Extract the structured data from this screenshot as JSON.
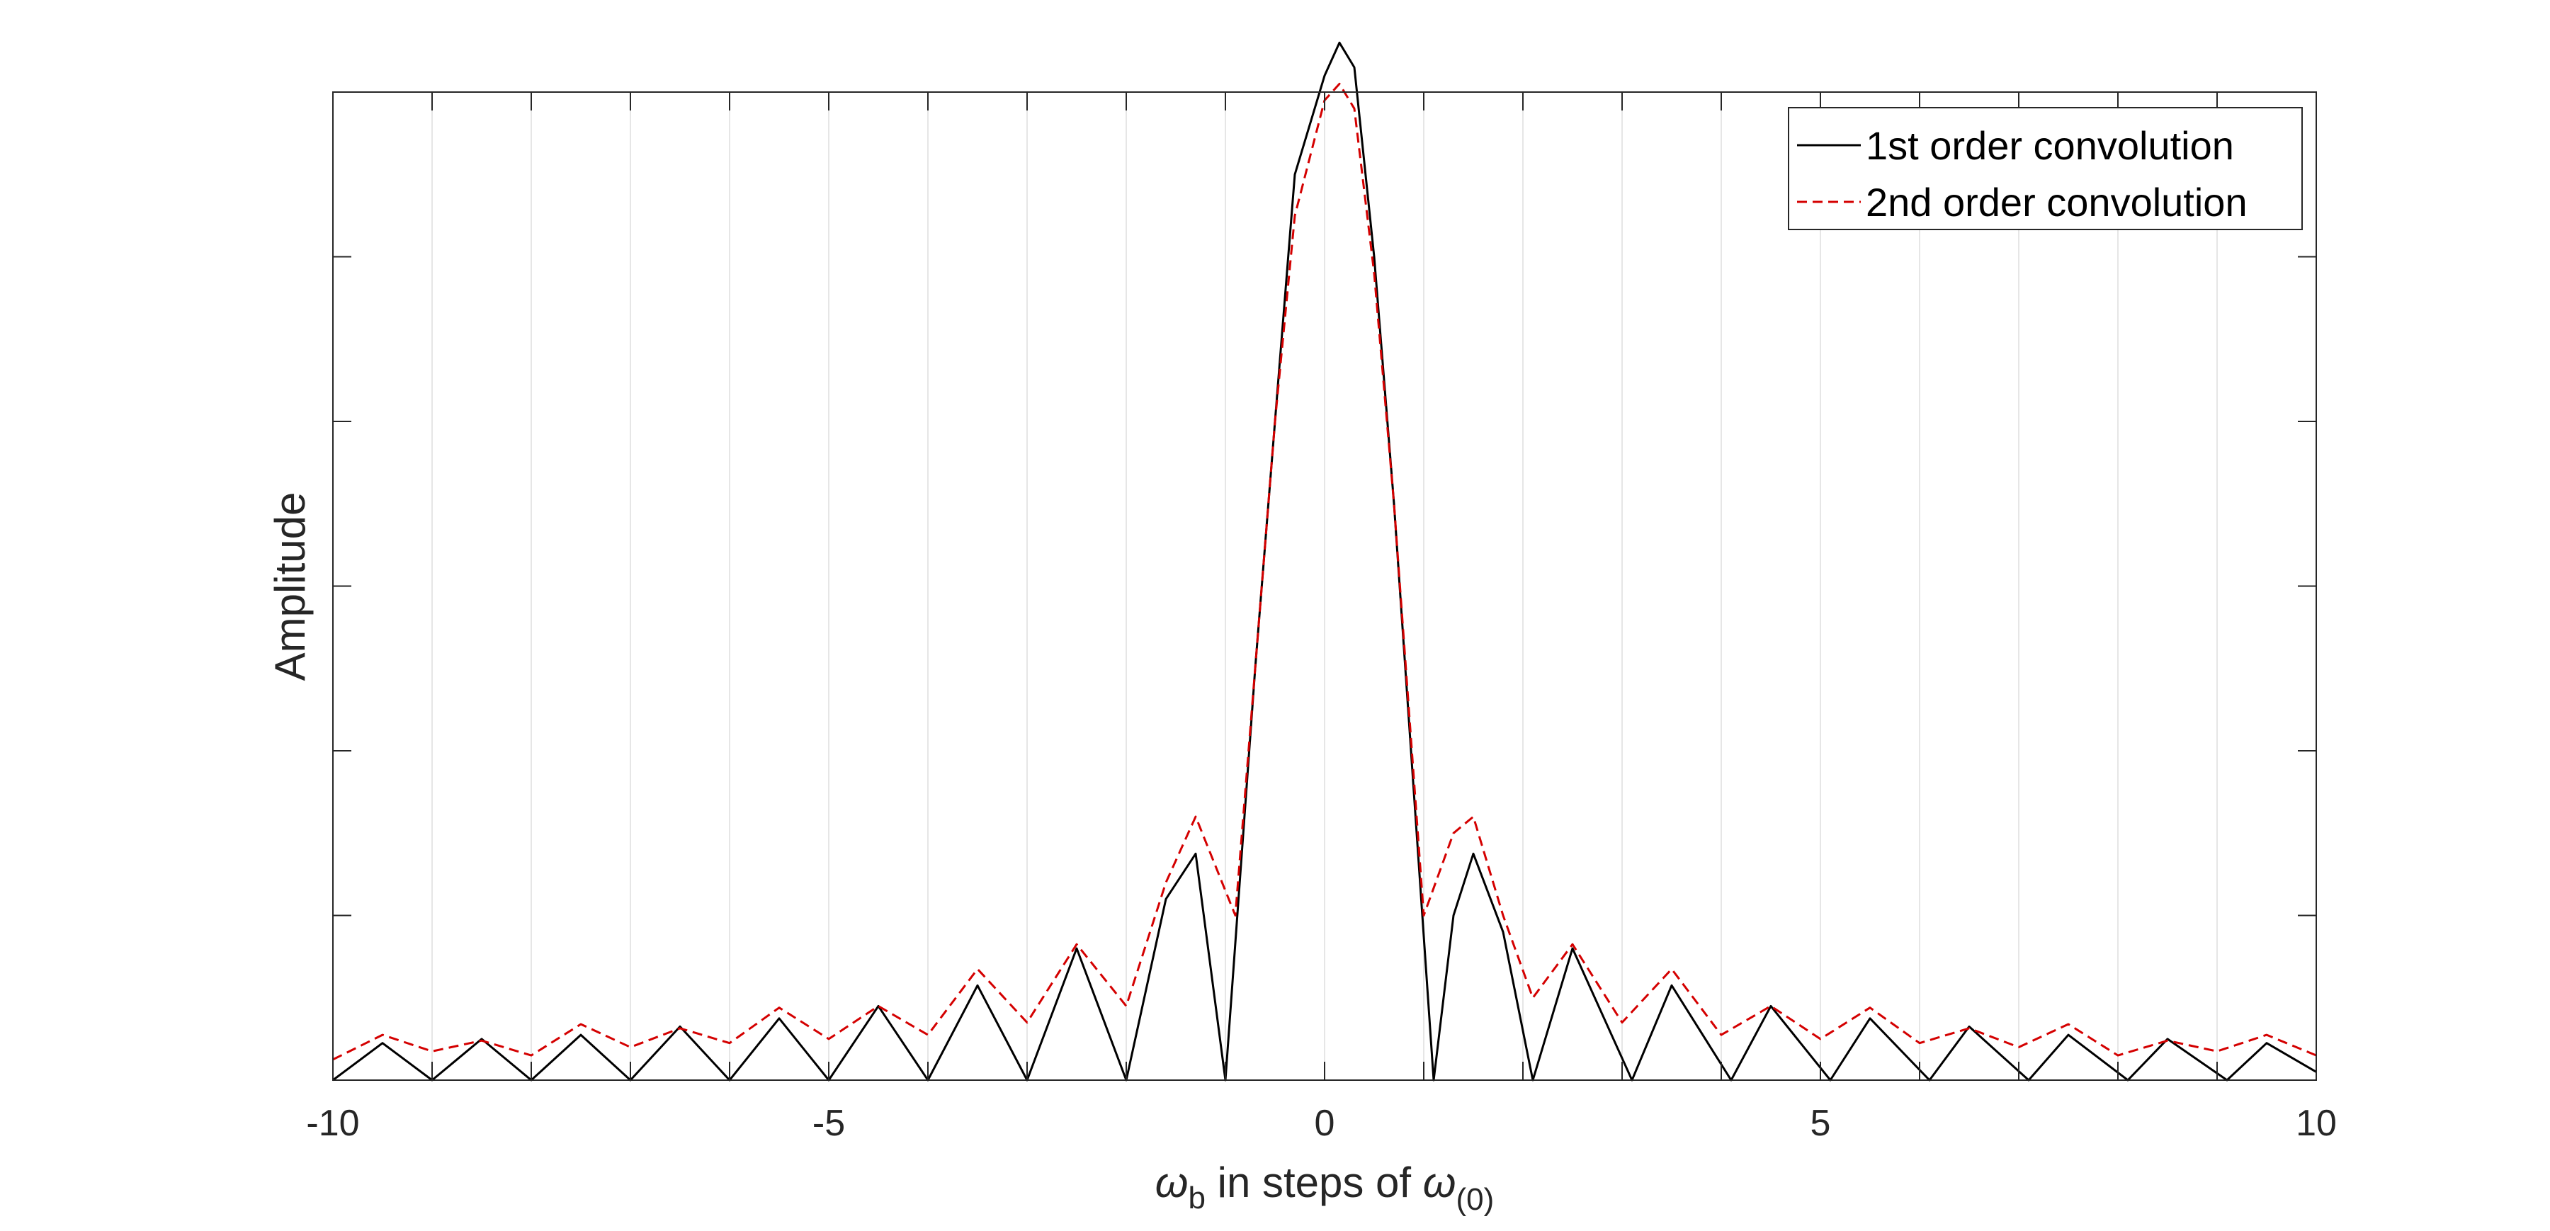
{
  "chart_data": {
    "type": "line",
    "title": "",
    "xlabel": {
      "main": "ω",
      "main_sub": "b",
      "middle": " in steps of ",
      "end": "ω",
      "end_sub": "(0)"
    },
    "ylabel": "Amplitude",
    "xlim": [
      -10,
      10
    ],
    "ylim": [
      0,
      1.2
    ],
    "xticks": [
      -10,
      -5,
      0,
      5,
      10
    ],
    "xtick_labels": [
      "-10",
      "-5",
      "0",
      "5",
      "10"
    ],
    "x_grid_lines": [
      -9,
      -8,
      -7,
      -6,
      -5,
      -4,
      -3,
      -2,
      -1,
      0,
      1,
      2,
      3,
      4,
      5,
      6,
      7,
      8,
      9
    ],
    "y_minor_ticks": [
      0.2,
      0.4,
      0.6,
      0.8,
      1.0
    ],
    "y_tick_labels_shown": false,
    "grid": "vertical",
    "legend_position": "top-right",
    "colors": {
      "series1": "#000000",
      "series2": "#d40000",
      "grid": "#e6e6e6",
      "axes": "#262626"
    },
    "series": [
      {
        "name": "1st order convolution",
        "style": "solid",
        "x": [
          -10,
          -9.5,
          -9,
          -8.5,
          -8,
          -7.5,
          -7,
          -6.5,
          -6,
          -5.5,
          -5,
          -4.5,
          -4,
          -3.5,
          -3,
          -2.5,
          -2,
          -1.6,
          -1.3,
          -1,
          -0.7,
          -0.5,
          -0.3,
          0,
          0.15,
          0.3,
          0.5,
          0.7,
          1.1,
          1.3,
          1.5,
          1.8,
          2.1,
          2.5,
          3.1,
          3.5,
          4.1,
          4.5,
          5.1,
          5.5,
          6.1,
          6.5,
          7.1,
          7.5,
          8.1,
          8.5,
          9.1,
          9.5,
          10
        ],
        "y": [
          0,
          0.045,
          0,
          0.05,
          0,
          0.055,
          0,
          0.065,
          0,
          0.075,
          0,
          0.09,
          0,
          0.115,
          0,
          0.16,
          0,
          0.22,
          0.275,
          0,
          0.5,
          0.8,
          1.1,
          1.22,
          1.26,
          1.23,
          1.0,
          0.7,
          0,
          0.2,
          0.275,
          0.18,
          0,
          0.16,
          0,
          0.115,
          0,
          0.09,
          0,
          0.075,
          0,
          0.065,
          0,
          0.055,
          0,
          0.05,
          0,
          0.045,
          0.01
        ]
      },
      {
        "name": "2nd order convolution",
        "style": "dashed",
        "x": [
          -10,
          -9.5,
          -9,
          -8.5,
          -8,
          -7.5,
          -7,
          -6.5,
          -6,
          -5.5,
          -5,
          -4.5,
          -4,
          -3.5,
          -3,
          -2.5,
          -2,
          -1.6,
          -1.3,
          -0.9,
          -0.7,
          -0.5,
          -0.3,
          0,
          0.15,
          0.3,
          0.5,
          0.7,
          1.0,
          1.3,
          1.5,
          1.8,
          2.1,
          2.5,
          3.0,
          3.5,
          4.0,
          4.5,
          5.0,
          5.5,
          6.0,
          6.5,
          7.0,
          7.5,
          8.0,
          8.5,
          9.0,
          9.5,
          10
        ],
        "y": [
          0.025,
          0.055,
          0.035,
          0.048,
          0.03,
          0.068,
          0.04,
          0.063,
          0.045,
          0.088,
          0.05,
          0.09,
          0.055,
          0.135,
          0.07,
          0.165,
          0.09,
          0.24,
          0.32,
          0.2,
          0.5,
          0.8,
          1.05,
          1.19,
          1.21,
          1.18,
          0.98,
          0.7,
          0.2,
          0.3,
          0.32,
          0.2,
          0.1,
          0.165,
          0.07,
          0.135,
          0.055,
          0.09,
          0.05,
          0.088,
          0.045,
          0.063,
          0.04,
          0.068,
          0.03,
          0.048,
          0.035,
          0.055,
          0.03
        ]
      }
    ]
  }
}
